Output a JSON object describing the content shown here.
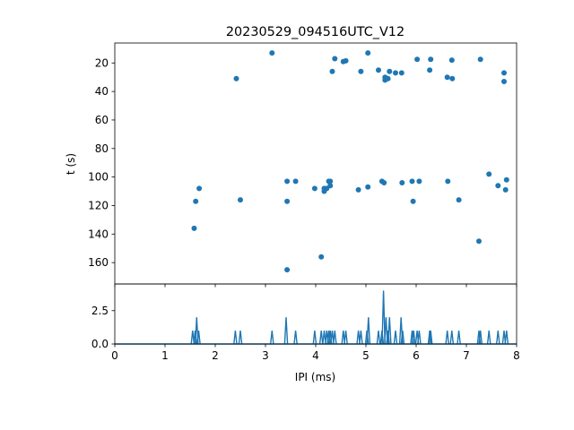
{
  "chart_data": [
    {
      "type": "scatter",
      "title": "20230529_094516UTC_V12",
      "xlabel": "",
      "ylabel": "t (s)",
      "xlim": [
        0,
        8
      ],
      "ylim": [
        175,
        6
      ],
      "y_inverted": true,
      "yticks": [
        20,
        40,
        60,
        80,
        100,
        120,
        140,
        160
      ],
      "show_xticklabels": false,
      "grid": false,
      "marker_color": "#1f77b4",
      "points": [
        [
          3.13,
          13
        ],
        [
          2.42,
          31
        ],
        [
          4.38,
          17
        ],
        [
          4.55,
          19
        ],
        [
          4.6,
          18.5
        ],
        [
          4.33,
          26
        ],
        [
          4.9,
          26
        ],
        [
          5.04,
          13
        ],
        [
          5.25,
          25
        ],
        [
          5.38,
          32
        ],
        [
          5.38,
          30
        ],
        [
          5.44,
          31
        ],
        [
          5.47,
          26
        ],
        [
          5.59,
          27
        ],
        [
          5.71,
          27
        ],
        [
          6.02,
          17.5
        ],
        [
          6.27,
          25
        ],
        [
          6.29,
          17.5
        ],
        [
          6.62,
          30
        ],
        [
          6.71,
          18
        ],
        [
          6.72,
          31
        ],
        [
          7.28,
          17.5
        ],
        [
          7.75,
          27
        ],
        [
          7.75,
          33
        ],
        [
          1.68,
          108
        ],
        [
          1.61,
          117
        ],
        [
          1.58,
          136
        ],
        [
          2.5,
          116
        ],
        [
          3.43,
          103
        ],
        [
          3.43,
          117
        ],
        [
          3.6,
          103
        ],
        [
          3.43,
          165
        ],
        [
          3.98,
          108
        ],
        [
          4.17,
          108
        ],
        [
          4.17,
          110
        ],
        [
          4.22,
          108
        ],
        [
          4.26,
          103
        ],
        [
          4.29,
          103
        ],
        [
          4.29,
          106
        ],
        [
          4.85,
          109
        ],
        [
          5.04,
          107
        ],
        [
          5.32,
          103
        ],
        [
          5.36,
          104
        ],
        [
          5.72,
          104
        ],
        [
          5.92,
          103
        ],
        [
          5.94,
          117
        ],
        [
          6.06,
          103
        ],
        [
          6.63,
          103
        ],
        [
          6.85,
          116
        ],
        [
          7.25,
          145
        ],
        [
          7.45,
          98
        ],
        [
          7.63,
          106
        ],
        [
          7.78,
          109
        ],
        [
          7.8,
          102
        ],
        [
          4.11,
          156
        ]
      ]
    },
    {
      "type": "line",
      "xlabel": "IPI (ms)",
      "ylabel": "",
      "xlim": [
        0,
        8
      ],
      "ylim": [
        0,
        4.5
      ],
      "xticks": [
        0,
        1,
        2,
        3,
        4,
        5,
        6,
        7,
        8
      ],
      "yticks": [
        0.0,
        2.5
      ],
      "ytick_labels": [
        "0.0",
        "2.5"
      ],
      "grid": false,
      "line_color": "#1f77b4",
      "peaks": [
        [
          1.55,
          1
        ],
        [
          1.6,
          1
        ],
        [
          1.63,
          2
        ],
        [
          1.67,
          1
        ],
        [
          2.4,
          1
        ],
        [
          2.5,
          1
        ],
        [
          3.13,
          1
        ],
        [
          3.41,
          2
        ],
        [
          3.6,
          1
        ],
        [
          3.98,
          1
        ],
        [
          4.11,
          1
        ],
        [
          4.17,
          1
        ],
        [
          4.22,
          1
        ],
        [
          4.26,
          1
        ],
        [
          4.29,
          1
        ],
        [
          4.33,
          1
        ],
        [
          4.38,
          1
        ],
        [
          4.55,
          1
        ],
        [
          4.6,
          1
        ],
        [
          4.85,
          1
        ],
        [
          4.9,
          1
        ],
        [
          5.02,
          1
        ],
        [
          5.05,
          2
        ],
        [
          5.25,
          1
        ],
        [
          5.32,
          1
        ],
        [
          5.35,
          4
        ],
        [
          5.4,
          2
        ],
        [
          5.44,
          1
        ],
        [
          5.47,
          2
        ],
        [
          5.59,
          1
        ],
        [
          5.7,
          2
        ],
        [
          5.73,
          1
        ],
        [
          5.92,
          1
        ],
        [
          5.95,
          1
        ],
        [
          6.02,
          1
        ],
        [
          6.06,
          1
        ],
        [
          6.27,
          1
        ],
        [
          6.29,
          1
        ],
        [
          6.62,
          1
        ],
        [
          6.71,
          1
        ],
        [
          6.85,
          1
        ],
        [
          7.25,
          1
        ],
        [
          7.28,
          1
        ],
        [
          7.45,
          1
        ],
        [
          7.63,
          1
        ],
        [
          7.75,
          1
        ],
        [
          7.8,
          1
        ]
      ]
    }
  ]
}
